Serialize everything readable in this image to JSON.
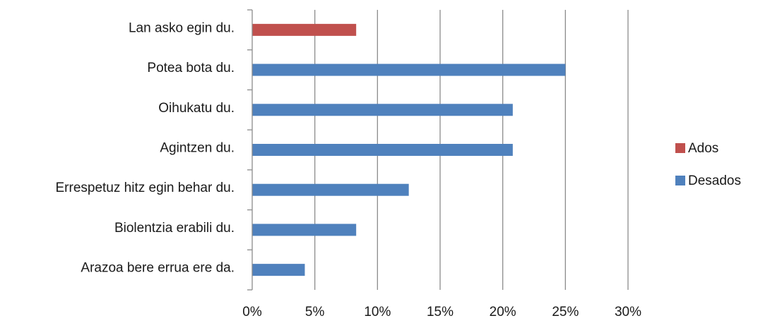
{
  "chart_data": {
    "type": "bar",
    "orientation": "horizontal",
    "categories": [
      "Lan asko egin du.",
      "Potea bota du.",
      "Oihukatu du.",
      "Agintzen du.",
      "Errespetuz hitz egin behar du.",
      "Biolentzia erabili du.",
      "Arazoa bere errua ere da."
    ],
    "series": [
      {
        "name": "Ados",
        "color": "#c0504d",
        "values": [
          8.3,
          null,
          null,
          null,
          null,
          null,
          null
        ]
      },
      {
        "name": "Desados",
        "color": "#4f81bd",
        "values": [
          null,
          25,
          20.8,
          20.8,
          12.5,
          8.3,
          4.2
        ]
      }
    ],
    "xlim": [
      0,
      30
    ],
    "x_ticks": [
      "0%",
      "5%",
      "10%",
      "15%",
      "20%",
      "25%",
      "30%"
    ],
    "title": "",
    "xlabel": "",
    "ylabel": "",
    "grid": "vertical",
    "legend_position": "right"
  }
}
